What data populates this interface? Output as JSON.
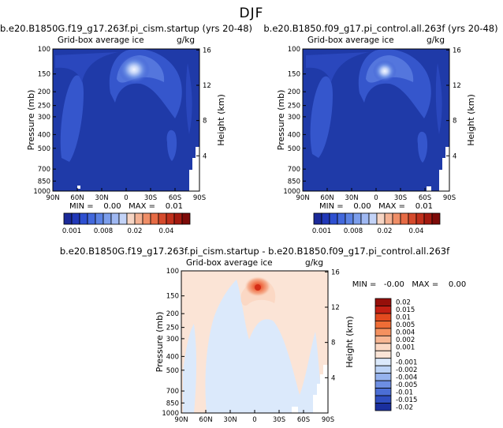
{
  "figure_title": "DJF",
  "panel_labels": {
    "top_left": "b.e20.B1850G.f19_g17.263f.pi_cism.startup (yrs 20-48)",
    "top_right": "b.e20.B1850.f09_g17.pi_control.all.263f (yrs 20-48)",
    "bottom": "b.e20.B1850G.f19_g17.263f.pi_cism.startup - b.e20.B1850.f09_g17.pi_control.all.263f"
  },
  "panel_subtitle": "Grid-box average ice",
  "units": "g/kg",
  "ylabel": "Pressure (mb)",
  "ylabel_right": "Height (km)",
  "stats": {
    "top_left": "MIN =    0.00   MAX =    0.01",
    "top_right": "MIN =    0.00   MAX =    0.01",
    "bottom": "MIN =   -0.00   MAX =    0.00"
  },
  "chart_data": [
    {
      "type": "heatmap",
      "title": "b.e20.B1850G.f19_g17.263f.pi_cism.startup (yrs 20-48)",
      "subtitle": "Grid-box average ice",
      "units": "g/kg",
      "x_ticks": [
        "90N",
        "60N",
        "30N",
        "0",
        "30S",
        "60S",
        "90S"
      ],
      "x_values": [
        90,
        60,
        30,
        0,
        -30,
        -60,
        -90
      ],
      "y_ticks": [
        "100",
        "150",
        "200",
        "250",
        "300",
        "400",
        "500",
        "700",
        "850",
        "1000"
      ],
      "ylabel": "Pressure (mb)",
      "ylim": [
        1000,
        100
      ],
      "right_ticks": [
        "16",
        "12",
        "8",
        "4"
      ],
      "right_label": "Height (km)",
      "colorbar_levels": [
        0.001,
        0.002,
        0.004,
        0.006,
        0.008,
        0.01,
        0.012,
        0.014,
        0.02,
        0.025,
        0.03,
        0.035,
        0.04,
        0.045,
        0.05,
        0.06
      ],
      "colorbar_labels": [
        "0.001",
        "0.008",
        "0.02",
        "0.04"
      ],
      "min": "0.00",
      "max": "0.01"
    },
    {
      "type": "heatmap",
      "title": "b.e20.B1850.f09_g17.pi_control.all.263f (yrs 20-48)",
      "subtitle": "Grid-box average ice",
      "units": "g/kg",
      "x_ticks": [
        "90N",
        "60N",
        "30N",
        "0",
        "30S",
        "60S",
        "90S"
      ],
      "x_values": [
        90,
        60,
        30,
        0,
        -30,
        -60,
        -90
      ],
      "y_ticks": [
        "100",
        "150",
        "200",
        "250",
        "300",
        "400",
        "500",
        "700",
        "850",
        "1000"
      ],
      "ylabel": "Pressure (mb)",
      "ylim": [
        1000,
        100
      ],
      "right_ticks": [
        "16",
        "12",
        "8",
        "4"
      ],
      "right_label": "Height (km)",
      "colorbar_levels": [
        0.001,
        0.002,
        0.004,
        0.006,
        0.008,
        0.01,
        0.012,
        0.014,
        0.02,
        0.025,
        0.03,
        0.035,
        0.04,
        0.045,
        0.05,
        0.06
      ],
      "colorbar_labels": [
        "0.001",
        "0.008",
        "0.02",
        "0.04"
      ],
      "min": "0.00",
      "max": "0.01"
    },
    {
      "type": "heatmap",
      "title": "b.e20.B1850G.f19_g17.263f.pi_cism.startup - b.e20.B1850.f09_g17.pi_control.all.263f",
      "subtitle": "Grid-box average ice",
      "units": "g/kg",
      "x_ticks": [
        "90N",
        "60N",
        "30N",
        "0",
        "30S",
        "60S",
        "90S"
      ],
      "x_values": [
        90,
        60,
        30,
        0,
        -30,
        -60,
        -90
      ],
      "y_ticks": [
        "100",
        "150",
        "200",
        "250",
        "300",
        "400",
        "500",
        "700",
        "850",
        "1000"
      ],
      "ylabel": "Pressure (mb)",
      "ylim": [
        1000,
        100
      ],
      "right_ticks": [
        "16",
        "12",
        "8",
        "4"
      ],
      "right_label": "Height (km)",
      "colorbar_levels": [
        0.02,
        0.015,
        0.01,
        0.005,
        0.004,
        0.002,
        0.001,
        0,
        -0.001,
        -0.002,
        -0.004,
        -0.005,
        -0.01,
        -0.015,
        -0.02
      ],
      "colorbar_labels": [
        "0.02",
        "0.015",
        "0.01",
        "0.005",
        "0.004",
        "0.002",
        "0.001",
        "0",
        "-0.001",
        "-0.002",
        "-0.004",
        "-0.005",
        "-0.01",
        "-0.015",
        "-0.02"
      ],
      "min": "-0.00",
      "max": "0.00"
    }
  ],
  "colors": {
    "background_field": "#1f3aa8",
    "seq_palette": [
      "#1b2a99",
      "#2138b8",
      "#2d4fd0",
      "#4268dc",
      "#5b82e4",
      "#7c9eec",
      "#9fb8f2",
      "#c3d3f7",
      "#f6d5c4",
      "#f4b294",
      "#ef8e67",
      "#e66b45",
      "#d54a2c",
      "#c0301c",
      "#a41a10",
      "#7d0a08"
    ],
    "diff_palette": [
      "#960f0a",
      "#c42014",
      "#e34a1f",
      "#ef6d36",
      "#f4915f",
      "#f7b693",
      "#fbd8c4",
      "#fbe4d6",
      "#dbe9fb",
      "#bcd3f6",
      "#96b3ee",
      "#6d8ee2",
      "#4b6ed5",
      "#2f4ec0",
      "#1a2f9e"
    ]
  }
}
